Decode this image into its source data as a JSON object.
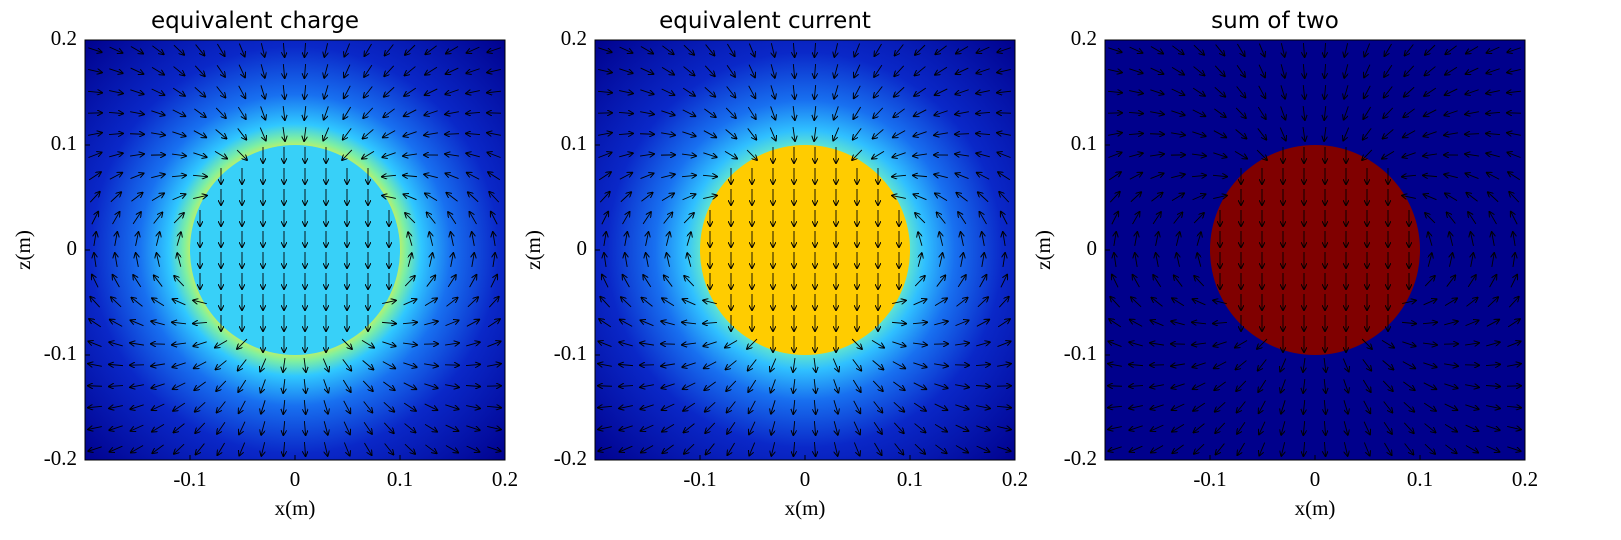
{
  "chart_data": [
    {
      "type": "quiver",
      "title": "equivalent charge",
      "xlabel": "x(m)",
      "ylabel": "z(m)",
      "xlim": [
        -0.2,
        0.2
      ],
      "ylim": [
        -0.2,
        0.2
      ],
      "xticks": [
        -0.1,
        0,
        0.1,
        0.2
      ],
      "yticks": [
        -0.2,
        -0.1,
        0,
        0.1,
        0.2
      ]
    },
    {
      "type": "quiver",
      "title": "equivalent current",
      "xlabel": "x(m)",
      "ylabel": "z(m)",
      "xlim": [
        -0.2,
        0.2
      ],
      "ylim": [
        -0.2,
        0.2
      ],
      "xticks": [
        -0.1,
        0,
        0.1,
        0.2
      ],
      "yticks": [
        -0.2,
        -0.1,
        0,
        0.1,
        0.2
      ]
    },
    {
      "type": "quiver",
      "title": "sum of two",
      "xlabel": "x(m)",
      "ylabel": "z(m)",
      "xlim": [
        -0.2,
        0.2
      ],
      "ylim": [
        -0.2,
        0.2
      ],
      "xticks": [
        -0.1,
        0,
        0.1,
        0.2
      ],
      "yticks": [
        -0.2,
        -0.1,
        0,
        0.1,
        0.2
      ]
    }
  ]
}
